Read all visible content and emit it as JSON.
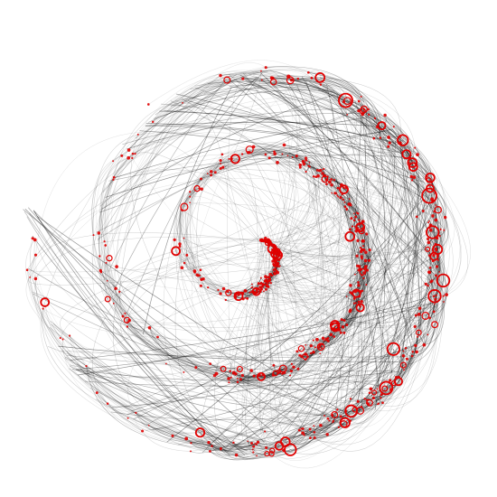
{
  "figure": {
    "kind": "spiral network graph",
    "background_color": "#ffffff",
    "node_color": "#e00000",
    "edge_color": "#000000",
    "layout_style": "clockwise spiral, dense on the right side, sparse on the left"
  },
  "legend": [],
  "labels": []
}
